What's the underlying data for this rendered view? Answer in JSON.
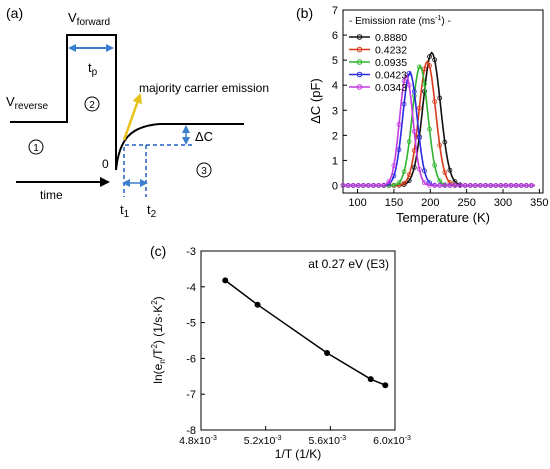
{
  "panels": {
    "a": {
      "label": "(a)",
      "v_forward": "V",
      "v_forward_sub": "forward",
      "v_reverse": "V",
      "v_reverse_sub": "reverse",
      "tp": "t",
      "tp_sub": "p",
      "region1": "1",
      "region2": "2",
      "region3": "3",
      "emission_label": "majority carrier emission",
      "delta_c": "ΔC",
      "zero": "0",
      "time_label": "time",
      "t1": "t",
      "t1_sub": "1",
      "t2": "t",
      "t2_sub": "2",
      "colors": {
        "line": "#000000",
        "dashed": "#1f5fbf",
        "arrow_blue": "#3a7fcf",
        "arrow_yellow": "#e8c21a"
      }
    },
    "b": {
      "label": "(b)"
    },
    "c": {
      "label": "(c)"
    }
  },
  "chart_data": [
    {
      "panel": "b",
      "type": "line",
      "xlabel": "Temperature (K)",
      "ylabel": "ΔC (pF)",
      "xlim": [
        80,
        355
      ],
      "ylim": [
        -0.3,
        7
      ],
      "xticks": [
        100,
        150,
        200,
        250,
        300,
        350
      ],
      "yticks": [
        0,
        1,
        2,
        3,
        4,
        5,
        6,
        7
      ],
      "legend_title": "- Emission rate (ms",
      "legend_title_sup": "-1",
      "legend_title_end": ") -",
      "legend_position": "top-left",
      "series": [
        {
          "name": "0.8880",
          "color": "#111111",
          "peak_x": 202,
          "peak_y": 5.3,
          "width": 17
        },
        {
          "name": "0.4232",
          "color": "#d93a1a",
          "peak_x": 196,
          "peak_y": 4.95,
          "width": 16
        },
        {
          "name": "0.0935",
          "color": "#2fb52f",
          "peak_x": 186,
          "peak_y": 4.75,
          "width": 15
        },
        {
          "name": "0.0423",
          "color": "#2a2adf",
          "peak_x": 172,
          "peak_y": 4.5,
          "width": 14
        },
        {
          "name": "0.0343",
          "color": "#c43ae0",
          "peak_x": 167,
          "peak_y": 4.4,
          "width": 13
        }
      ]
    },
    {
      "panel": "c",
      "type": "line",
      "annotation": "at 0.27 eV (E3)",
      "xlabel": "1/T (1/K)",
      "ylabel": "ln(e_n/T^2) (1/s·K^2)",
      "xlim": [
        0.0048,
        0.006
      ],
      "ylim": [
        -8,
        -3
      ],
      "xticks": [
        {
          "value": 0.0048,
          "label": "4.8x10",
          "exp": "-3"
        },
        {
          "value": 0.0052,
          "label": "5.2x10",
          "exp": "-3"
        },
        {
          "value": 0.0056,
          "label": "5.6x10",
          "exp": "-3"
        },
        {
          "value": 0.006,
          "label": "6.0x10",
          "exp": "-3"
        }
      ],
      "yticks": [
        -3,
        -4,
        -5,
        -6,
        -7,
        -8
      ],
      "x": [
        0.00495,
        0.00515,
        0.00558,
        0.00585,
        0.00594
      ],
      "y": [
        -3.82,
        -4.5,
        -5.85,
        -6.58,
        -6.75
      ]
    }
  ]
}
